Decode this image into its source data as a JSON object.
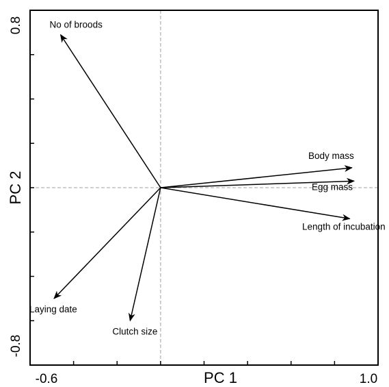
{
  "chart_data": {
    "type": "biplot",
    "title": "",
    "xlabel": "PC 1",
    "ylabel": "PC 2",
    "xlim": [
      -0.6,
      1.0
    ],
    "ylim": [
      -0.8,
      0.8
    ],
    "x_tick_labels": [
      "-0.6",
      "1.0"
    ],
    "y_tick_labels": [
      "-0.8",
      "0.8"
    ],
    "reference_lines": {
      "x": 0,
      "y": 0
    },
    "grid": false,
    "colors": {
      "vectors": "#000000",
      "reference": "#b5b5b5",
      "frame": "#000000"
    },
    "vectors": [
      {
        "name": "No of broods",
        "x": -0.46,
        "y": 0.69
      },
      {
        "name": "Body mass",
        "x": 0.88,
        "y": 0.09
      },
      {
        "name": "Egg mass",
        "x": 0.89,
        "y": 0.03
      },
      {
        "name": "Length of incubation",
        "x": 0.87,
        "y": -0.14
      },
      {
        "name": "Laying date",
        "x": -0.49,
        "y": -0.5
      },
      {
        "name": "Clutch size",
        "x": -0.14,
        "y": -0.6
      }
    ]
  }
}
